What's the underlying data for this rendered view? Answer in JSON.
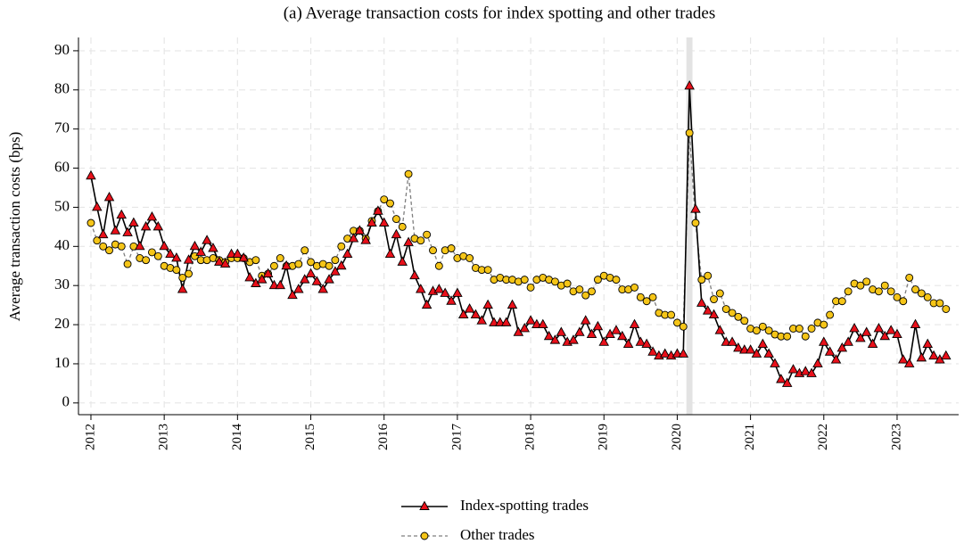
{
  "chart_data": {
    "type": "line",
    "title": "(a) Average transaction costs for index spotting and other trades",
    "y_label": "Average transaction costs (bps)",
    "x": [
      2012.0,
      2012.083,
      2012.167,
      2012.25,
      2012.333,
      2012.417,
      2012.5,
      2012.583,
      2012.667,
      2012.75,
      2012.833,
      2012.917,
      2013.0,
      2013.083,
      2013.167,
      2013.25,
      2013.333,
      2013.417,
      2013.5,
      2013.583,
      2013.667,
      2013.75,
      2013.833,
      2013.917,
      2014.0,
      2014.083,
      2014.167,
      2014.25,
      2014.333,
      2014.417,
      2014.5,
      2014.583,
      2014.667,
      2014.75,
      2014.833,
      2014.917,
      2015.0,
      2015.083,
      2015.167,
      2015.25,
      2015.333,
      2015.417,
      2015.5,
      2015.583,
      2015.667,
      2015.75,
      2015.833,
      2015.917,
      2016.0,
      2016.083,
      2016.167,
      2016.25,
      2016.333,
      2016.417,
      2016.5,
      2016.583,
      2016.667,
      2016.75,
      2016.833,
      2016.917,
      2017.0,
      2017.083,
      2017.167,
      2017.25,
      2017.333,
      2017.417,
      2017.5,
      2017.583,
      2017.667,
      2017.75,
      2017.833,
      2017.917,
      2018.0,
      2018.083,
      2018.167,
      2018.25,
      2018.333,
      2018.417,
      2018.5,
      2018.583,
      2018.667,
      2018.75,
      2018.833,
      2018.917,
      2019.0,
      2019.083,
      2019.167,
      2019.25,
      2019.333,
      2019.417,
      2019.5,
      2019.583,
      2019.667,
      2019.75,
      2019.833,
      2019.917,
      2020.0,
      2020.083,
      2020.167,
      2020.25,
      2020.333,
      2020.417,
      2020.5,
      2020.583,
      2020.667,
      2020.75,
      2020.833,
      2020.917,
      2021.0,
      2021.083,
      2021.167,
      2021.25,
      2021.333,
      2021.417,
      2021.5,
      2021.583,
      2021.667,
      2021.75,
      2021.833,
      2021.917,
      2022.0,
      2022.083,
      2022.167,
      2022.25,
      2022.333,
      2022.417,
      2022.5,
      2022.583,
      2022.667,
      2022.75,
      2022.833,
      2022.917,
      2023.0,
      2023.083,
      2023.167,
      2023.25,
      2023.333,
      2023.417,
      2023.5,
      2023.583,
      2023.667
    ],
    "series": [
      {
        "name": "Index-spotting trades",
        "color": "#e8101a",
        "line_color": "#000000",
        "line_style": "solid",
        "marker": "triangle",
        "values": [
          58,
          50,
          43,
          52.5,
          44,
          48,
          43.5,
          46,
          40,
          45,
          47.5,
          45,
          40,
          38,
          37,
          29,
          36.5,
          40,
          38.5,
          41.5,
          39.5,
          36,
          35.5,
          38,
          38,
          37,
          32,
          30.5,
          31.5,
          33,
          30,
          30,
          35,
          27.5,
          29,
          31.5,
          33,
          31,
          29,
          31.5,
          33.5,
          35,
          38,
          42,
          44,
          41.5,
          46,
          49,
          46,
          38,
          43,
          36,
          41,
          32.5,
          29,
          25,
          28.5,
          29,
          28,
          26,
          28,
          22.5,
          24,
          22.5,
          21,
          25,
          20.5,
          20.5,
          20.5,
          25,
          18,
          19,
          21,
          20,
          20,
          17,
          16,
          18,
          15.5,
          16,
          18,
          21,
          17.5,
          19.5,
          15.5,
          17.5,
          18.5,
          17,
          15,
          20,
          15.5,
          15,
          13,
          12,
          12.5,
          12,
          12.5,
          12.5,
          81,
          49.5,
          25.5,
          23.5,
          22.5,
          18.5,
          15.5,
          15.5,
          14,
          13.5,
          13.5,
          12.5,
          15,
          12.5,
          10,
          6,
          5,
          8.5,
          7.5,
          8,
          7.5,
          10,
          15.5,
          13,
          11,
          14,
          15.5,
          19,
          16.5,
          18,
          15,
          19,
          17,
          18.5,
          17.5,
          11,
          10,
          20,
          11.5,
          15,
          12,
          11,
          12
        ]
      },
      {
        "name": "Other trades",
        "color": "#f5c518",
        "line_color": "#7f7f7f",
        "line_style": "dashed",
        "marker": "circle",
        "values": [
          46,
          41.5,
          40,
          39,
          40.5,
          40,
          35.5,
          40,
          37,
          36.5,
          38.5,
          37.5,
          35,
          34.5,
          34,
          32,
          33,
          37.5,
          36.5,
          36.5,
          37,
          36.5,
          36,
          37,
          37,
          37,
          36,
          36.5,
          32.5,
          33,
          35,
          37,
          35,
          35,
          35.5,
          39,
          36,
          35,
          35.5,
          35,
          36.5,
          40,
          42,
          44,
          44,
          42,
          46.5,
          49,
          52,
          51,
          47,
          45,
          58.5,
          42,
          41.5,
          43,
          39,
          35,
          39,
          39.5,
          37,
          37.5,
          37,
          34.5,
          34,
          34,
          31.5,
          32,
          31.5,
          31.5,
          31,
          31.5,
          29.5,
          31.5,
          32,
          31.5,
          31,
          30,
          30.5,
          28.5,
          29,
          27.5,
          28.5,
          31.5,
          32.5,
          32,
          31.5,
          29,
          29,
          29.5,
          27,
          26,
          27,
          23,
          22.5,
          22.5,
          20.5,
          19.5,
          69,
          46,
          31.5,
          32.5,
          26.5,
          28,
          24,
          23,
          22,
          21,
          19,
          18.5,
          19.5,
          18.5,
          17.5,
          17,
          17,
          19,
          19,
          17,
          19,
          20.5,
          20,
          22.5,
          26,
          26,
          28.5,
          30.5,
          30,
          31,
          29,
          28.5,
          30,
          28.5,
          27,
          26,
          32,
          29,
          28,
          27,
          25.5,
          25.5,
          24
        ]
      }
    ],
    "shaded_period": [
      2020.125,
      2020.208
    ],
    "xlim": [
      2011.83,
      2023.84
    ],
    "xticks": [
      2012,
      2013,
      2014,
      2015,
      2016,
      2017,
      2018,
      2019,
      2020,
      2021,
      2022,
      2023
    ],
    "ylim": [
      -3,
      93.4
    ],
    "yticks": [
      0,
      10,
      20,
      30,
      40,
      50,
      60,
      70,
      80,
      90
    ],
    "grid": true,
    "legend": "bottom"
  }
}
